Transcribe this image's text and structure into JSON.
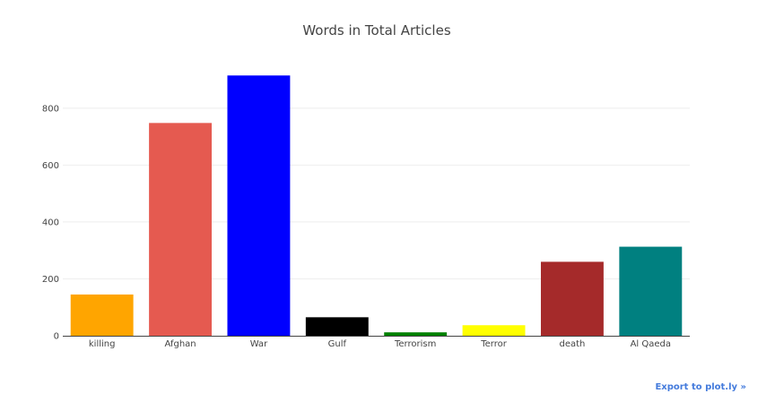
{
  "export_link": {
    "label": "Export to plot.ly »"
  },
  "chart_data": {
    "type": "bar",
    "title": "Words in Total Articles",
    "xlabel": "",
    "ylabel": "",
    "categories": [
      "killing",
      "Afghan",
      "War",
      "Gulf",
      "Terrorism",
      "Terror",
      "death",
      "Al Qaeda"
    ],
    "values": [
      145,
      748,
      915,
      65,
      12,
      37,
      260,
      313
    ],
    "colors": [
      "#ffa500",
      "#e55a50",
      "#0000ff",
      "#000000",
      "#008000",
      "#ffff00",
      "#a52a2a",
      "#008080"
    ],
    "ylim": [
      0,
      960
    ],
    "yticks": [
      0,
      200,
      400,
      600,
      800
    ],
    "grid": true,
    "legend": "none"
  }
}
